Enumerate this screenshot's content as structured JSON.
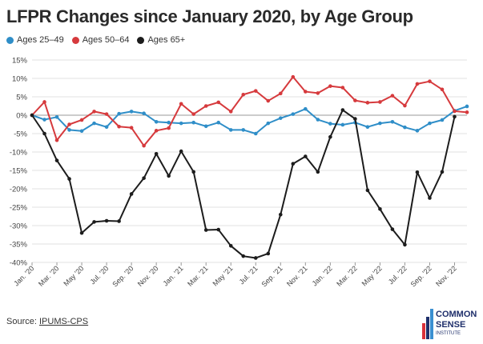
{
  "title": "LFPR Changes since January 2020, by Age Group",
  "source": {
    "label": "Source:",
    "link_text": "IPUMS-CPS"
  },
  "logo": {
    "line1": "COMMON",
    "line2": "SENSE",
    "line3": "INSTITUTE",
    "bar_colors": [
      "#d9303a",
      "#1f2f6b",
      "#3a8fd1"
    ]
  },
  "chart_data": {
    "type": "line",
    "title": "LFPR Changes since January 2020, by Age Group",
    "xlabel": "",
    "ylabel": "",
    "ylim": [
      -40,
      15
    ],
    "yticks": [
      15,
      10,
      5,
      0,
      -5,
      -10,
      -15,
      -20,
      -25,
      -30,
      -35,
      -40
    ],
    "ytick_labels": [
      "15%",
      "10%",
      "5%",
      "0%",
      "-5%",
      "-10%",
      "-15%",
      "-20%",
      "-25%",
      "-30%",
      "-35%",
      "-40%"
    ],
    "grid": true,
    "legend_position": "top-left",
    "xtick_labels": [
      "Jan. '20",
      "Mar. '20",
      "May '20",
      "Jul. '20",
      "Sep. '20",
      "Nov. '20",
      "Jan. '21",
      "Mar. '21",
      "May '21",
      "Jul. '21",
      "Sep. '21",
      "Nov. '21",
      "Jan. '22",
      "Mar. '22",
      "May '22",
      "Jul. '22",
      "Sep. '22",
      "Nov. '22"
    ],
    "xtick_every": 2,
    "x": [
      "2020-01",
      "2020-02",
      "2020-03",
      "2020-04",
      "2020-05",
      "2020-06",
      "2020-07",
      "2020-08",
      "2020-09",
      "2020-10",
      "2020-11",
      "2020-12",
      "2021-01",
      "2021-02",
      "2021-03",
      "2021-04",
      "2021-05",
      "2021-06",
      "2021-07",
      "2021-08",
      "2021-09",
      "2021-10",
      "2021-11",
      "2021-12",
      "2022-01",
      "2022-02",
      "2022-03",
      "2022-04",
      "2022-05",
      "2022-06",
      "2022-07",
      "2022-08",
      "2022-09",
      "2022-10",
      "2022-11",
      "2022-12"
    ],
    "series": [
      {
        "name": "Ages 25–49",
        "color": "#2f8ec8",
        "values": [
          0,
          -1.2,
          -0.5,
          -4.0,
          -4.3,
          -2.2,
          -3.2,
          0.4,
          1.0,
          0.5,
          -1.8,
          -2.0,
          -2.2,
          -2.0,
          -3.0,
          -2.0,
          -4.0,
          -4.0,
          -5.0,
          -2.2,
          -0.8,
          0.3,
          1.7,
          -1.2,
          -2.3,
          -2.6,
          -2.0,
          -3.2,
          -2.2,
          -1.8,
          -3.3,
          -4.2,
          -2.2,
          -1.3,
          1.2,
          2.4
        ]
      },
      {
        "name": "Ages 50–64",
        "color": "#d63a3d",
        "values": [
          0,
          3.6,
          -6.8,
          -2.5,
          -1.3,
          1.0,
          0.3,
          -3.1,
          -3.4,
          -8.3,
          -4.2,
          -3.5,
          3.1,
          0.3,
          2.5,
          3.5,
          1.0,
          5.6,
          6.6,
          3.9,
          5.9,
          10.4,
          6.4,
          6.0,
          7.9,
          7.5,
          4.0,
          3.4,
          3.6,
          5.3,
          2.6,
          8.5,
          9.2,
          7.0,
          1.1,
          0.8
        ]
      },
      {
        "name": "Ages 65+",
        "color": "#1c1c1c",
        "values": [
          0,
          -5.0,
          -12.3,
          -17.3,
          -32.0,
          -29.0,
          -28.7,
          -28.8,
          -21.4,
          -17.1,
          -10.5,
          -16.5,
          -9.8,
          -15.4,
          -31.2,
          -31.1,
          -35.5,
          -38.3,
          -38.8,
          -37.6,
          -27.0,
          -13.2,
          -11.2,
          -15.4,
          -5.9,
          1.4,
          -1.0,
          -20.4,
          -25.5,
          -31.0,
          -35.2,
          -15.5,
          -22.5,
          -15.4,
          -0.4,
          null
        ]
      }
    ]
  }
}
